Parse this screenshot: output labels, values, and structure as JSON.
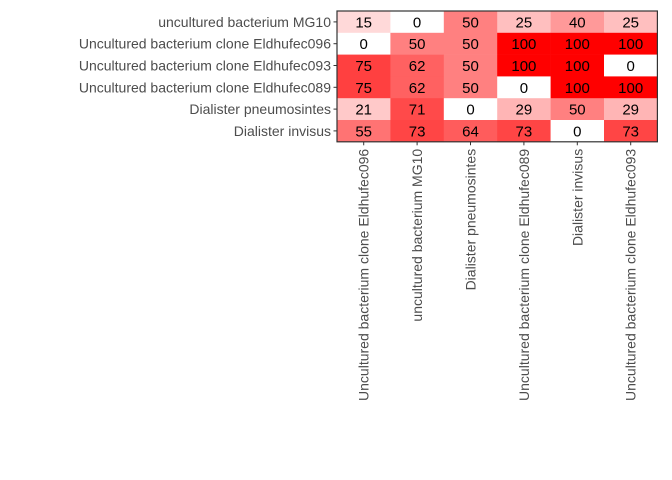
{
  "chart_data": {
    "type": "heatmap",
    "title": "",
    "xlabel": "",
    "ylabel": "",
    "x_categories": [
      "Uncultured bacterium clone Eldhufec096",
      "uncultured bacterium MG10",
      "Dialister pneumosintes",
      "Uncultured bacterium clone Eldhufec089",
      "Dialister invisus",
      "Uncultured bacterium clone Eldhufec093"
    ],
    "y_categories": [
      "uncultured bacterium MG10",
      "Uncultured bacterium clone Eldhufec096",
      "Uncultured bacterium clone Eldhufec093",
      "Uncultured bacterium clone Eldhufec089",
      "Dialister pneumosintes",
      "Dialister invisus"
    ],
    "values": [
      [
        15,
        0,
        50,
        25,
        40,
        25
      ],
      [
        0,
        50,
        50,
        100,
        100,
        100
      ],
      [
        75,
        62,
        50,
        100,
        100,
        0
      ],
      [
        75,
        62,
        50,
        0,
        100,
        100
      ],
      [
        21,
        71,
        0,
        29,
        50,
        29
      ],
      [
        55,
        73,
        64,
        73,
        0,
        73
      ]
    ],
    "value_range": [
      0,
      100
    ],
    "color_scale": {
      "low": "#ffffff",
      "high": "#ff0000"
    },
    "grid": false,
    "legend": "none"
  }
}
